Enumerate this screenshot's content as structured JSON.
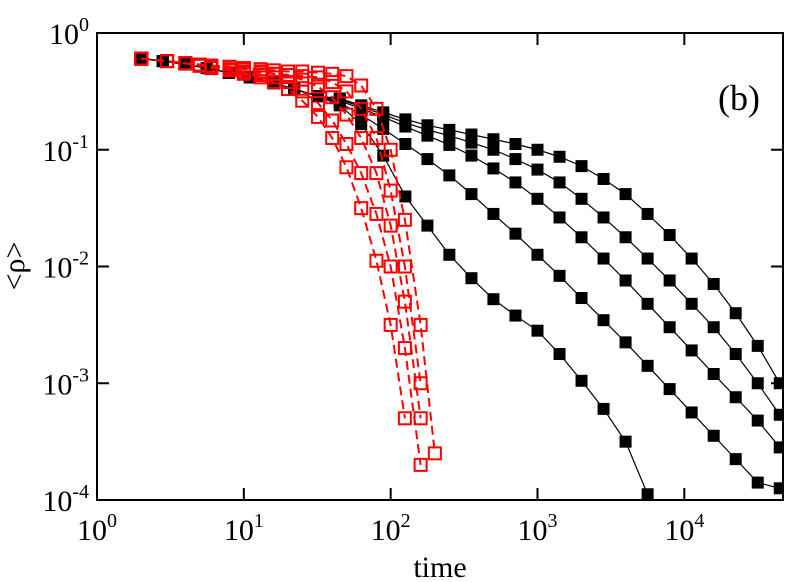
{
  "chart_data": {
    "type": "line",
    "xlabel": "time",
    "ylabel": "<ρ>",
    "annotation": "(b)",
    "xscale": "log",
    "yscale": "log",
    "xlim": [
      1,
      47000
    ],
    "ylim": [
      0.0001,
      1
    ],
    "xticks": [
      {
        "value": 1,
        "label": "10^0"
      },
      {
        "value": 10,
        "label": "10^1"
      },
      {
        "value": 100,
        "label": "10^2"
      },
      {
        "value": 1000,
        "label": "10^3"
      },
      {
        "value": 10000,
        "label": "10^4"
      }
    ],
    "yticks": [
      {
        "value": 0.0001,
        "label": "10^-4"
      },
      {
        "value": 0.001,
        "label": "10^-3"
      },
      {
        "value": 0.01,
        "label": "10^-2"
      },
      {
        "value": 0.1,
        "label": "10^-1"
      },
      {
        "value": 1,
        "label": "10^0"
      }
    ],
    "series": [
      {
        "color": "#000000",
        "style": "solid",
        "marker": "filled-square",
        "x": [
          2,
          2.8,
          4,
          5.6,
          7.9,
          11,
          16,
          22,
          32,
          45,
          63,
          89,
          126,
          178,
          251,
          355,
          501,
          708,
          1000,
          1413,
          1995,
          2818,
          3981,
          5623,
          7943,
          11220,
          15849,
          22387,
          31623,
          44668
        ],
        "values": [
          0.603,
          0.575,
          0.537,
          0.501,
          0.457,
          0.417,
          0.372,
          0.331,
          0.288,
          0.24,
          0.166,
          0.0891,
          0.0398,
          0.0224,
          0.0126,
          0.00794,
          0.00525,
          0.0038,
          0.00282,
          0.00178,
          0.00105,
          0.000603,
          0.000316,
          0.000112,
          null,
          null,
          null,
          null,
          null,
          null
        ]
      },
      {
        "color": "#000000",
        "style": "solid",
        "marker": "filled-square",
        "x": [
          2,
          2.8,
          4,
          5.6,
          7.9,
          11,
          16,
          22,
          32,
          45,
          63,
          89,
          126,
          178,
          251,
          355,
          501,
          708,
          1000,
          1413,
          1995,
          2818,
          3981,
          5623,
          7943,
          11220,
          15849,
          22387,
          31623,
          44668
        ],
        "values": [
          0.603,
          0.575,
          0.537,
          0.501,
          0.457,
          0.417,
          0.372,
          0.331,
          0.288,
          0.251,
          0.2,
          0.151,
          0.112,
          0.0832,
          0.0603,
          0.0417,
          0.0282,
          0.0191,
          0.0126,
          0.00832,
          0.00537,
          0.00347,
          0.00224,
          0.00141,
          0.000891,
          0.000562,
          0.000355,
          0.000224,
          0.000141,
          0.000126
        ]
      },
      {
        "color": "#000000",
        "style": "solid",
        "marker": "filled-square",
        "x": [
          2,
          2.8,
          4,
          5.6,
          7.9,
          11,
          16,
          22,
          32,
          45,
          63,
          89,
          126,
          178,
          251,
          355,
          501,
          708,
          1000,
          1413,
          1995,
          2818,
          3981,
          5623,
          7943,
          11220,
          15849,
          22387,
          31623,
          44668
        ],
        "values": [
          0.603,
          0.575,
          0.537,
          0.501,
          0.457,
          0.417,
          0.372,
          0.331,
          0.288,
          0.263,
          0.224,
          0.191,
          0.158,
          0.132,
          0.11,
          0.0891,
          0.0692,
          0.0525,
          0.038,
          0.0263,
          0.0178,
          0.0117,
          0.00759,
          0.00479,
          0.00302,
          0.00191,
          0.0012,
          0.000759,
          0.000479,
          0.000282
        ]
      },
      {
        "color": "#000000",
        "style": "solid",
        "marker": "filled-square",
        "x": [
          2,
          2.8,
          4,
          5.6,
          7.9,
          11,
          16,
          22,
          32,
          45,
          63,
          89,
          126,
          178,
          251,
          355,
          501,
          708,
          1000,
          1413,
          1995,
          2818,
          3981,
          5623,
          7943,
          11220,
          15849,
          22387,
          31623,
          44668
        ],
        "values": [
          0.603,
          0.575,
          0.537,
          0.501,
          0.457,
          0.417,
          0.372,
          0.331,
          0.288,
          0.269,
          0.234,
          0.2,
          0.17,
          0.148,
          0.132,
          0.115,
          0.1,
          0.0832,
          0.0676,
          0.0525,
          0.038,
          0.0263,
          0.0178,
          0.0117,
          0.00759,
          0.00479,
          0.00302,
          0.00178,
          0.001,
          0.000537
        ]
      },
      {
        "color": "#000000",
        "style": "solid",
        "marker": "filled-square",
        "x": [
          2,
          2.8,
          4,
          5.6,
          7.9,
          11,
          16,
          22,
          32,
          45,
          63,
          89,
          126,
          178,
          251,
          355,
          501,
          708,
          1000,
          1413,
          1995,
          2818,
          3981,
          5623,
          7943,
          11220,
          15849,
          22387,
          31623,
          44668
        ],
        "values": [
          0.603,
          0.575,
          0.537,
          0.501,
          0.457,
          0.417,
          0.372,
          0.331,
          0.288,
          0.275,
          0.24,
          0.209,
          0.182,
          0.162,
          0.148,
          0.135,
          0.123,
          0.112,
          0.1,
          0.0871,
          0.0724,
          0.0562,
          0.0417,
          0.0282,
          0.0186,
          0.0117,
          0.00708,
          0.00398,
          0.00209,
          0.001
        ]
      },
      {
        "color": "#ff0000",
        "style": "dashed",
        "marker": "open-square",
        "x": [
          2,
          3,
          4,
          5,
          6,
          8,
          10,
          13,
          16,
          20,
          25,
          32,
          40,
          50,
          63,
          80,
          100,
          125,
          160,
          200,
          250
        ],
        "values": [
          0.603,
          0.575,
          0.55,
          0.537,
          0.525,
          0.513,
          0.501,
          0.49,
          0.479,
          0.468,
          0.468,
          0.457,
          0.447,
          0.427,
          0.355,
          0.224,
          0.1,
          0.0251,
          0.00316,
          0.000251,
          null
        ]
      },
      {
        "color": "#ff0000",
        "style": "dashed",
        "marker": "open-square",
        "x": [
          2,
          3,
          4,
          5,
          6,
          8,
          10,
          13,
          16,
          20,
          25,
          32,
          40,
          50,
          63,
          80,
          100,
          125,
          160,
          200,
          250
        ],
        "values": [
          0.603,
          0.575,
          0.55,
          0.537,
          0.525,
          0.513,
          0.49,
          0.468,
          0.447,
          0.437,
          0.427,
          0.417,
          0.38,
          0.316,
          0.224,
          0.126,
          0.0447,
          0.01,
          0.001,
          null,
          null
        ]
      },
      {
        "color": "#ff0000",
        "style": "dashed",
        "marker": "open-square",
        "x": [
          2,
          3,
          4,
          5,
          6,
          8,
          10,
          13,
          16,
          20,
          25,
          32,
          40,
          50,
          63,
          80,
          100,
          125,
          160,
          200,
          250
        ],
        "values": [
          0.603,
          0.575,
          0.55,
          0.525,
          0.513,
          0.49,
          0.468,
          0.457,
          0.447,
          0.437,
          0.398,
          0.347,
          0.282,
          0.2,
          0.126,
          0.0631,
          0.0224,
          0.005,
          0.000501,
          null,
          null
        ]
      },
      {
        "color": "#ff0000",
        "style": "dashed",
        "marker": "open-square",
        "x": [
          2,
          3,
          4,
          5,
          6,
          8,
          10,
          13,
          16,
          20,
          25,
          32,
          40,
          50,
          63,
          80,
          100,
          125,
          160,
          200,
          250
        ],
        "values": [
          0.603,
          0.575,
          0.55,
          0.525,
          0.501,
          0.479,
          0.457,
          0.437,
          0.417,
          0.38,
          0.316,
          0.251,
          0.178,
          0.112,
          0.0631,
          0.0282,
          0.01,
          0.002,
          0.0002,
          null,
          null
        ]
      },
      {
        "color": "#ff0000",
        "style": "dashed",
        "marker": "open-square",
        "x": [
          2,
          3,
          4,
          5,
          6,
          8,
          10,
          13,
          16,
          20,
          25,
          32,
          40,
          50,
          63,
          80,
          100,
          125,
          160,
          200,
          250
        ],
        "values": [
          0.603,
          0.575,
          0.55,
          0.525,
          0.501,
          0.479,
          0.447,
          0.417,
          0.38,
          0.331,
          0.263,
          0.191,
          0.126,
          0.0708,
          0.0316,
          0.0112,
          0.00316,
          0.000501,
          null,
          null,
          null
        ]
      }
    ]
  }
}
